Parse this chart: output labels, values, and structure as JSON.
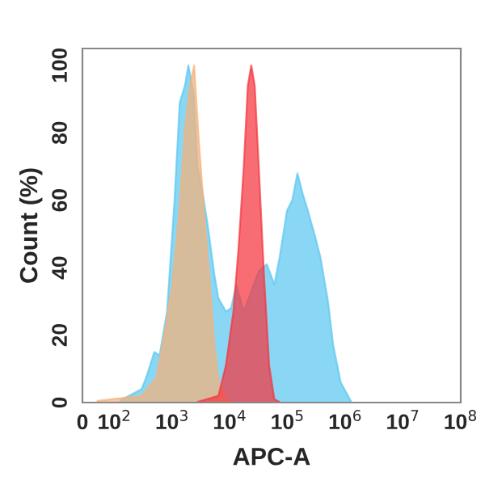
{
  "chart_data": {
    "type": "area",
    "xlabel": "APC-A",
    "ylabel": "Count (%)",
    "log": "x",
    "grid": false,
    "xlim": [
      0,
      100000000
    ],
    "xticks": [
      0,
      {
        "value": 100,
        "label": "10$^{2}$"
      },
      {
        "value": 1000,
        "label": "10$^{3}$"
      },
      {
        "value": 10000,
        "label": "10$^{4}$"
      },
      {
        "value": 100000,
        "label": "10$^{5}$"
      },
      {
        "value": 1000000,
        "label": "10$^{6}$"
      },
      {
        "value": 10000000,
        "label": "10$^{7}$"
      },
      {
        "value": 100000000,
        "label": "10$^{8}$"
      }
    ],
    "ylim": [
      0,
      105
    ],
    "yticks": [
      0,
      20,
      40,
      60,
      80,
      100
    ],
    "series": [
      {
        "color": "#5bc8f0",
        "x": [
          126,
          295,
          363,
          490,
          603,
          813,
          1096,
          1349,
          1660,
          1905,
          2344,
          2754,
          3388,
          4169,
          5370,
          6310,
          8511,
          10470,
          12880,
          17380,
          31620,
          43650,
          58880,
          72440,
          97720,
          120200,
          147900,
          182000,
          223900,
          302000,
          371500,
          501200,
          616600,
          831800,
          1259000
        ],
        "values": [
          0.6,
          4,
          8,
          15,
          14,
          27,
          60,
          89,
          94,
          100,
          92,
          70,
          62,
          52,
          38,
          31,
          27,
          28,
          35,
          27,
          39,
          41,
          35,
          43,
          57,
          60,
          68,
          62,
          57,
          49,
          43,
          30,
          17,
          6,
          0.3
        ]
      },
      {
        "color": "#f5b27a",
        "x": [
          47,
          295,
          537,
          724,
          1000,
          1349,
          1660,
          2042,
          2399,
          2884,
          3548,
          4365,
          5370,
          6457,
          8511,
          11480
        ],
        "values": [
          0.5,
          2,
          7.5,
          20,
          35,
          58,
          81,
          94,
          100,
          78,
          57,
          38,
          17,
          6,
          0.6,
          0.2
        ]
      },
      {
        "color": "#f5353f",
        "x": [
          2754,
          6310,
          8511,
          11480,
          14130,
          17380,
          20420,
          23440,
          26920,
          31620,
          38900,
          47860,
          58880,
          72440
        ],
        "values": [
          0.2,
          2,
          11,
          27,
          46,
          70,
          94,
          100,
          94,
          70,
          38,
          11,
          1,
          0.2
        ]
      }
    ]
  }
}
